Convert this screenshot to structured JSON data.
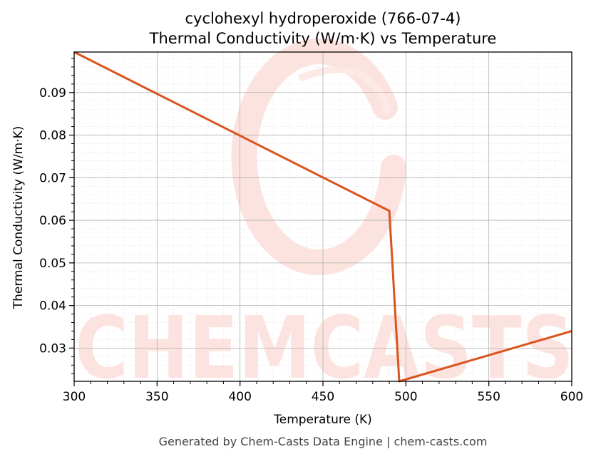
{
  "chart_data": {
    "type": "line",
    "title": "cyclohexyl hydroperoxide (766-07-4)",
    "subtitle": "Thermal Conductivity (W/m·K) vs Temperature",
    "xlabel": "Temperature (K)",
    "ylabel": "Thermal Conductivity (W/m·K)",
    "xlim": [
      300,
      600
    ],
    "ylim": [
      0.0222,
      0.0995
    ],
    "x_ticks": [
      300,
      350,
      400,
      450,
      500,
      550,
      600
    ],
    "x_tick_labels": [
      "300",
      "350",
      "400",
      "450",
      "500",
      "550",
      "600"
    ],
    "y_ticks": [
      0.03,
      0.04,
      0.05,
      0.06,
      0.07,
      0.08,
      0.09
    ],
    "y_tick_labels": [
      "0.03",
      "0.04",
      "0.05",
      "0.06",
      "0.07",
      "0.08",
      "0.09"
    ],
    "grid": true,
    "minor_grid": true,
    "series": [
      {
        "color": "#d9541e",
        "x": [
          300,
          490,
          496,
          600
        ],
        "y": [
          0.0995,
          0.0622,
          0.0222,
          0.034
        ]
      }
    ]
  },
  "watermark": {
    "text": "CHEMCASTS",
    "color": "#fde0dc"
  },
  "footer": {
    "text": "Generated by Chem-Casts Data Engine | chem-casts.com"
  }
}
